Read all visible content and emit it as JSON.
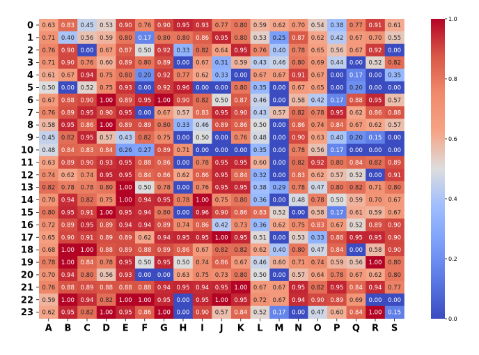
{
  "chart_data": {
    "type": "heatmap",
    "rows": [
      "0",
      "1",
      "2",
      "3",
      "4",
      "5",
      "6",
      "7",
      "8",
      "9",
      "10",
      "11",
      "12",
      "13",
      "14",
      "15",
      "16",
      "17",
      "18",
      "19",
      "20",
      "21",
      "22",
      "23"
    ],
    "columns": [
      "A",
      "B",
      "C",
      "D",
      "E",
      "F",
      "G",
      "H",
      "I",
      "J",
      "K",
      "L",
      "M",
      "N",
      "O",
      "P",
      "Q",
      "R",
      "S"
    ],
    "values": [
      [
        0.63,
        0.83,
        0.45,
        0.53,
        0.9,
        0.76,
        0.9,
        0.95,
        0.93,
        0.77,
        0.8,
        0.59,
        0.62,
        0.7,
        0.54,
        0.38,
        0.77,
        0.91,
        0.61
      ],
      [
        0.71,
        0.4,
        0.56,
        0.59,
        0.8,
        0.17,
        0.8,
        0.8,
        0.86,
        0.95,
        0.8,
        0.53,
        0.25,
        0.87,
        0.62,
        0.42,
        0.67,
        0.7,
        0.55
      ],
      [
        0.76,
        0.9,
        0.0,
        0.67,
        0.87,
        0.5,
        0.92,
        0.33,
        0.82,
        0.64,
        0.95,
        0.76,
        0.4,
        0.78,
        0.65,
        0.56,
        0.67,
        0.92,
        0.0
      ],
      [
        0.71,
        0.9,
        0.76,
        0.6,
        0.89,
        0.8,
        0.89,
        0.0,
        0.67,
        0.31,
        0.59,
        0.43,
        0.46,
        0.8,
        0.69,
        0.44,
        0.0,
        0.52,
        0.82
      ],
      [
        0.61,
        0.67,
        0.94,
        0.75,
        0.8,
        0.2,
        0.92,
        0.77,
        0.62,
        0.33,
        0.0,
        0.67,
        0.67,
        0.91,
        0.67,
        0.0,
        0.17,
        0.0,
        0.35
      ],
      [
        0.5,
        0.0,
        0.52,
        0.75,
        0.93,
        0.0,
        0.92,
        0.96,
        0.0,
        0.0,
        0.8,
        0.35,
        0.0,
        0.67,
        0.65,
        0.0,
        0.2,
        0.0,
        0.0
      ],
      [
        0.67,
        0.88,
        0.9,
        1.0,
        0.89,
        0.95,
        1.0,
        0.9,
        0.82,
        0.5,
        0.87,
        0.46,
        0.0,
        0.58,
        0.42,
        0.17,
        0.88,
        0.95,
        0.57
      ],
      [
        0.76,
        0.89,
        0.95,
        0.9,
        0.95,
        0.0,
        0.67,
        0.57,
        0.83,
        0.95,
        0.9,
        0.43,
        0.57,
        0.82,
        0.78,
        0.95,
        0.62,
        0.86,
        0.88
      ],
      [
        0.58,
        0.95,
        0.86,
        1.0,
        0.89,
        0.89,
        0.8,
        0.33,
        0.46,
        0.89,
        0.86,
        0.5,
        0.0,
        0.86,
        0.74,
        0.84,
        0.67,
        0.62,
        0.57
      ],
      [
        0.45,
        0.82,
        0.95,
        0.57,
        0.43,
        0.82,
        0.75,
        0.0,
        0.5,
        0.0,
        0.76,
        0.48,
        0.0,
        0.9,
        0.63,
        0.4,
        0.2,
        0.15,
        0.0
      ],
      [
        0.48,
        0.84,
        0.83,
        0.84,
        0.26,
        0.27,
        0.89,
        0.71,
        0.0,
        0.0,
        0.0,
        0.35,
        0.0,
        0.78,
        0.56,
        0.17,
        0.0,
        0.0,
        0.0
      ],
      [
        0.63,
        0.89,
        0.9,
        0.93,
        0.95,
        0.88,
        0.86,
        0.0,
        0.78,
        0.95,
        0.95,
        0.6,
        0.0,
        0.82,
        0.92,
        0.8,
        0.84,
        0.82,
        0.89
      ],
      [
        0.74,
        0.62,
        0.74,
        0.95,
        0.95,
        0.84,
        0.86,
        0.62,
        0.86,
        0.95,
        0.84,
        0.32,
        0.0,
        0.83,
        0.62,
        0.57,
        0.52,
        0.0,
        0.91
      ],
      [
        0.82,
        0.78,
        0.78,
        0.8,
        1.0,
        0.5,
        0.78,
        0.0,
        0.76,
        0.95,
        0.95,
        0.38,
        0.29,
        0.78,
        0.47,
        0.8,
        0.82,
        0.71,
        0.8
      ],
      [
        0.7,
        0.94,
        0.82,
        0.75,
        1.0,
        0.94,
        0.95,
        0.78,
        1.0,
        0.75,
        0.8,
        0.36,
        0.0,
        0.48,
        0.78,
        0.5,
        0.59,
        0.7,
        0.67
      ],
      [
        0.8,
        0.95,
        0.91,
        1.0,
        0.95,
        0.94,
        0.8,
        0.0,
        0.96,
        0.9,
        0.86,
        0.83,
        0.52,
        0.0,
        0.58,
        0.17,
        0.61,
        0.59,
        0.67
      ],
      [
        0.72,
        0.89,
        0.95,
        0.89,
        0.94,
        0.94,
        0.89,
        0.74,
        0.86,
        0.42,
        0.73,
        0.36,
        0.62,
        0.75,
        0.83,
        0.67,
        0.52,
        0.89,
        0.9
      ],
      [
        0.65,
        0.9,
        0.91,
        0.89,
        0.89,
        0.62,
        0.94,
        0.95,
        0.95,
        1.0,
        0.95,
        0.51,
        0.0,
        0.53,
        0.33,
        0.88,
        0.95,
        0.95,
        0.9
      ],
      [
        0.68,
        1.0,
        1.0,
        0.88,
        0.89,
        0.88,
        0.89,
        0.86,
        0.67,
        0.82,
        0.82,
        0.62,
        0.4,
        0.8,
        0.47,
        0.84,
        0.0,
        0.58,
        0.9
      ],
      [
        0.78,
        1.0,
        0.84,
        0.78,
        0.95,
        0.5,
        0.95,
        0.5,
        0.74,
        0.86,
        0.67,
        0.46,
        0.6,
        0.71,
        0.74,
        0.59,
        0.56,
        1.0,
        0.8
      ],
      [
        0.7,
        0.94,
        0.8,
        0.56,
        0.93,
        0.0,
        0.0,
        0.63,
        0.75,
        0.73,
        0.8,
        0.5,
        0.0,
        0.57,
        0.64,
        0.78,
        0.67,
        0.62,
        0.8
      ],
      [
        0.76,
        0.88,
        0.89,
        0.88,
        0.88,
        0.88,
        0.94,
        0.95,
        0.94,
        0.95,
        1.0,
        0.67,
        0.67,
        0.95,
        0.82,
        0.95,
        0.84,
        0.94,
        0.77
      ],
      [
        0.59,
        1.0,
        0.94,
        0.82,
        1.0,
        1.0,
        0.95,
        0.0,
        0.95,
        1.0,
        0.95,
        0.72,
        0.67,
        0.94,
        0.9,
        0.89,
        0.69,
        0.0,
        0.0
      ],
      [
        0.62,
        0.95,
        0.82,
        1.0,
        0.95,
        0.86,
        1.0,
        0.0,
        0.9,
        0.57,
        0.84,
        0.52,
        0.17,
        0.0,
        0.47,
        0.6,
        0.84,
        1.0,
        0.15
      ]
    ],
    "value_range": [
      0.0,
      1.0
    ],
    "colormap": "coolwarm",
    "colormap_stops": [
      "#3b4cc0",
      "#dddddd",
      "#b40426"
    ],
    "colorbar": {
      "ticks": [
        0.0,
        0.2,
        0.4,
        0.6,
        0.8,
        1.0
      ],
      "tick_labels": [
        "0.0",
        "0.2",
        "0.4",
        "0.6",
        "0.8",
        "1.0"
      ],
      "placement": "right"
    },
    "annotations": true,
    "annotation_format": "0.00"
  }
}
